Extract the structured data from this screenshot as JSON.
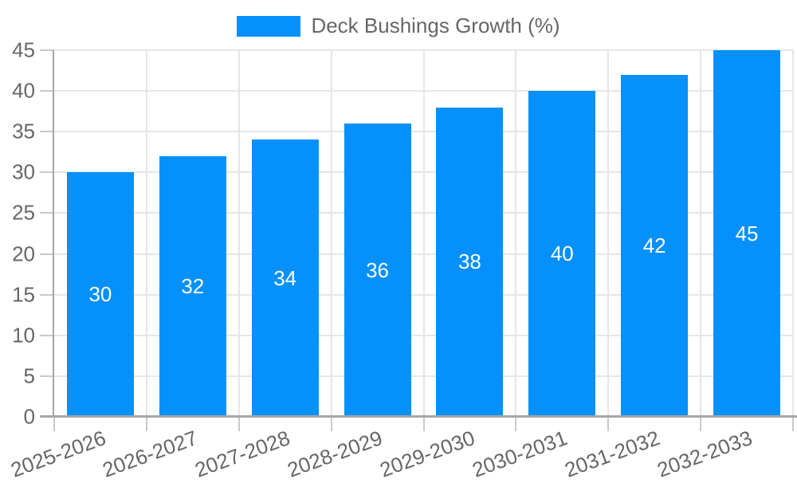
{
  "legend": {
    "label": "Deck Bushings Growth (%)"
  },
  "chart_data": {
    "type": "bar",
    "title": "",
    "xlabel": "",
    "ylabel": "",
    "categories": [
      "2025-2026",
      "2026-2027",
      "2027-2028",
      "2028-2029",
      "2029-2030",
      "2030-2031",
      "2031-2032",
      "2032-2033"
    ],
    "series": [
      {
        "name": "Deck Bushings Growth (%)",
        "values": [
          30,
          32,
          34,
          36,
          38,
          40,
          42,
          45
        ]
      }
    ],
    "value_labels": "inside-center",
    "ylim": [
      0,
      45
    ],
    "yticks": [
      0,
      5,
      10,
      15,
      20,
      25,
      30,
      35,
      40,
      45
    ],
    "grid": true,
    "legend_position": "top-center",
    "x_label_rotation_deg": -20
  },
  "colors": {
    "bar": "#0590FB",
    "text": "#666666",
    "grid": "#e6e6e6",
    "tick": "#c9c9c9",
    "axis": "#a6a6a6",
    "bar_label": "#ffffff",
    "background": "#ffffff"
  }
}
